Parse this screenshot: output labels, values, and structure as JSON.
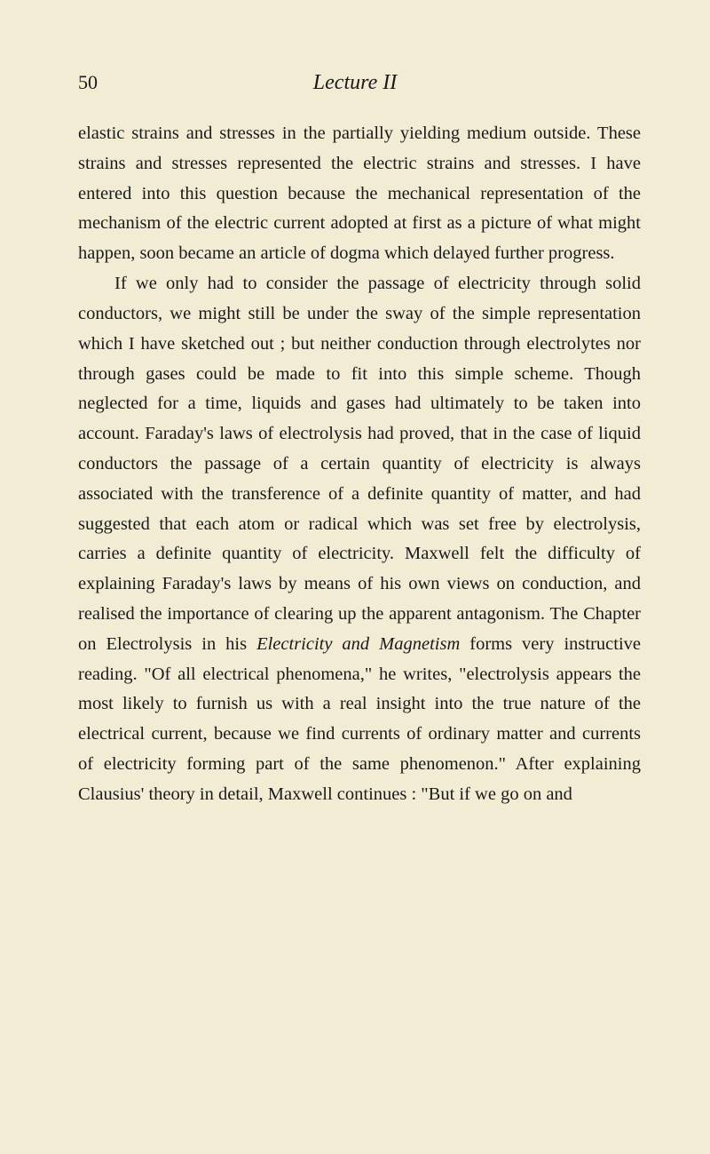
{
  "page_number": "50",
  "header_title": "Lecture II",
  "colors": {
    "background": "#f2ecd4",
    "text": "#1a1a1a"
  },
  "typography": {
    "body_font_size": 20.5,
    "body_line_height": 1.65,
    "header_font_size": 24,
    "page_num_font_size": 22,
    "font_family": "Georgia, 'Times New Roman', serif"
  },
  "paragraphs": {
    "p1": "elastic strains and stresses in the partially yielding medium outside. These strains and stresses repre­sented the electric strains and stresses. I have entered into this question because the mechanical representation of the mechanism of the electric current adopted at first as a picture of what might happen, soon became an article of dogma which delayed further progress.",
    "p2_part1": "If we only had to consider the passage of electricity through solid conductors, we might still be under the sway of the simple representation which I have sketched out ; but neither conduction through electro­lytes nor through gases could be made to fit into this simple scheme. Though neglected for a time, liquids and gases had ultimately to be taken into account. Faraday's laws of electrolysis had proved, that in the case of liquid conductors the passage of a certain quantity of electricity is always associated with the transference of a definite quantity of matter, and had suggested that each atom or radical which was set free by electrolysis, carries a definite quantity of electricity. Maxwell felt the difficulty of explaining Faraday's laws by means of his own views on conduction, and realised the importance of clearing up the apparent antagonism. The Chapter on Electrolysis in his ",
    "p2_italic": "Electricity and Magnetism",
    "p2_part2": " forms very instructive reading. \"Of all electrical phenomena,\" he writes, \"electrolysis appears the most likely to furnish us with a real insight into the true nature of the electrical current, because we find currents of ordinary matter and currents of electricity forming part of the same phenomenon.\" After explaining Clausius' theory in detail, Maxwell continues : \"But if we go on and"
  }
}
